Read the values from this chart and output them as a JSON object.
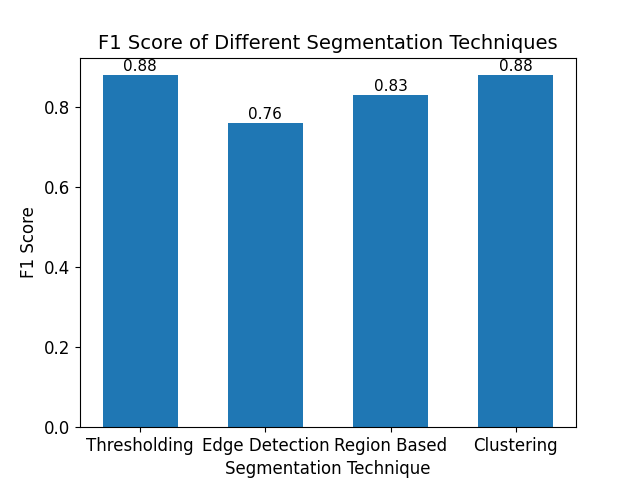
{
  "categories": [
    "Thresholding",
    "Edge Detection",
    "Region Based",
    "Clustering"
  ],
  "values": [
    0.88,
    0.76,
    0.83,
    0.88
  ],
  "bar_color": "#1f77b4",
  "title": "F1 Score of Different Segmentation Techniques",
  "xlabel": "Segmentation Technique",
  "ylabel": "F1 Score",
  "ylim": [
    0.0,
    null
  ],
  "title_fontsize": 14,
  "label_fontsize": 12,
  "tick_fontsize": 12,
  "annotation_fontsize": 11,
  "bar_width": 0.6
}
